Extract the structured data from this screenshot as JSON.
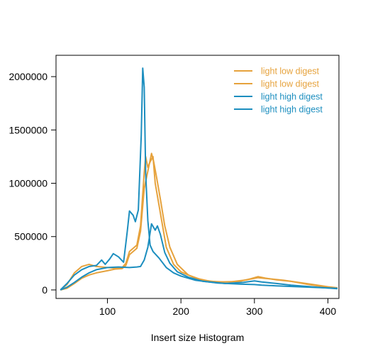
{
  "colors": {
    "low": "#E6A23C",
    "high": "#1C8EBF"
  },
  "chart_data": {
    "type": "line",
    "title": "",
    "xlabel": "Insert size Histogram",
    "ylabel": "",
    "xlim": [
      30,
      415
    ],
    "ylim": [
      -80000,
      2200000
    ],
    "x_ticks": [
      100,
      200,
      300,
      400
    ],
    "y_ticks": [
      0,
      500000,
      1000000,
      1500000,
      2000000
    ],
    "x_tick_labels": [
      "100",
      "200",
      "300",
      "400"
    ],
    "y_tick_labels": [
      "0",
      "500000",
      "1000000",
      "1500000",
      "2000000"
    ],
    "grid": false,
    "legend_position": "top-right",
    "legend": [
      {
        "label": "light low digest",
        "color_key": "low"
      },
      {
        "label": "light low digest",
        "color_key": "low"
      },
      {
        "label": "light high digest",
        "color_key": "high"
      },
      {
        "label": "light high digest",
        "color_key": "high"
      }
    ],
    "series": [
      {
        "color_key": "low",
        "points": [
          [
            36,
            0
          ],
          [
            45,
            50000
          ],
          [
            55,
            160000
          ],
          [
            65,
            220000
          ],
          [
            75,
            240000
          ],
          [
            85,
            220000
          ],
          [
            100,
            210000
          ],
          [
            110,
            205000
          ],
          [
            120,
            210000
          ],
          [
            125,
            250000
          ],
          [
            130,
            360000
          ],
          [
            140,
            420000
          ],
          [
            145,
            600000
          ],
          [
            150,
            1100000
          ],
          [
            152,
            1250000
          ],
          [
            155,
            1150000
          ],
          [
            158,
            1200000
          ],
          [
            162,
            1250000
          ],
          [
            165,
            1000000
          ],
          [
            170,
            800000
          ],
          [
            175,
            600000
          ],
          [
            180,
            400000
          ],
          [
            190,
            240000
          ],
          [
            200,
            170000
          ],
          [
            220,
            110000
          ],
          [
            240,
            80000
          ],
          [
            260,
            75000
          ],
          [
            280,
            80000
          ],
          [
            295,
            105000
          ],
          [
            305,
            125000
          ],
          [
            315,
            110000
          ],
          [
            330,
            95000
          ],
          [
            350,
            80000
          ],
          [
            370,
            55000
          ],
          [
            390,
            35000
          ],
          [
            413,
            15000
          ]
        ]
      },
      {
        "color_key": "low",
        "points": [
          [
            36,
            0
          ],
          [
            45,
            15000
          ],
          [
            55,
            60000
          ],
          [
            65,
            110000
          ],
          [
            75,
            140000
          ],
          [
            85,
            160000
          ],
          [
            100,
            180000
          ],
          [
            110,
            195000
          ],
          [
            120,
            200000
          ],
          [
            125,
            230000
          ],
          [
            130,
            330000
          ],
          [
            140,
            390000
          ],
          [
            145,
            550000
          ],
          [
            150,
            950000
          ],
          [
            153,
            1050000
          ],
          [
            157,
            1180000
          ],
          [
            160,
            1280000
          ],
          [
            163,
            1200000
          ],
          [
            167,
            1050000
          ],
          [
            172,
            850000
          ],
          [
            178,
            600000
          ],
          [
            185,
            400000
          ],
          [
            195,
            240000
          ],
          [
            210,
            140000
          ],
          [
            230,
            90000
          ],
          [
            250,
            75000
          ],
          [
            270,
            78000
          ],
          [
            290,
            95000
          ],
          [
            305,
            115000
          ],
          [
            320,
            105000
          ],
          [
            340,
            90000
          ],
          [
            360,
            70000
          ],
          [
            380,
            50000
          ],
          [
            400,
            30000
          ],
          [
            413,
            20000
          ]
        ]
      },
      {
        "color_key": "high",
        "points": [
          [
            36,
            0
          ],
          [
            45,
            60000
          ],
          [
            55,
            140000
          ],
          [
            65,
            190000
          ],
          [
            75,
            220000
          ],
          [
            85,
            230000
          ],
          [
            92,
            280000
          ],
          [
            97,
            240000
          ],
          [
            103,
            290000
          ],
          [
            108,
            340000
          ],
          [
            115,
            310000
          ],
          [
            122,
            260000
          ],
          [
            127,
            550000
          ],
          [
            130,
            740000
          ],
          [
            135,
            700000
          ],
          [
            138,
            640000
          ],
          [
            142,
            750000
          ],
          [
            146,
            1450000
          ],
          [
            148,
            2080000
          ],
          [
            150,
            1900000
          ],
          [
            152,
            1100000
          ],
          [
            155,
            650000
          ],
          [
            158,
            420000
          ],
          [
            162,
            360000
          ],
          [
            170,
            300000
          ],
          [
            180,
            210000
          ],
          [
            190,
            160000
          ],
          [
            200,
            130000
          ],
          [
            220,
            90000
          ],
          [
            250,
            65000
          ],
          [
            280,
            55000
          ],
          [
            300,
            50000
          ],
          [
            310,
            45000
          ],
          [
            330,
            38000
          ],
          [
            360,
            30000
          ],
          [
            390,
            22000
          ],
          [
            413,
            15000
          ]
        ]
      },
      {
        "color_key": "high",
        "points": [
          [
            36,
            0
          ],
          [
            45,
            25000
          ],
          [
            55,
            70000
          ],
          [
            65,
            120000
          ],
          [
            75,
            160000
          ],
          [
            85,
            190000
          ],
          [
            100,
            210000
          ],
          [
            115,
            215000
          ],
          [
            130,
            210000
          ],
          [
            140,
            215000
          ],
          [
            145,
            220000
          ],
          [
            150,
            280000
          ],
          [
            155,
            400000
          ],
          [
            160,
            620000
          ],
          [
            165,
            560000
          ],
          [
            168,
            600000
          ],
          [
            172,
            520000
          ],
          [
            178,
            350000
          ],
          [
            185,
            250000
          ],
          [
            195,
            170000
          ],
          [
            210,
            120000
          ],
          [
            230,
            80000
          ],
          [
            260,
            60000
          ],
          [
            285,
            70000
          ],
          [
            300,
            85000
          ],
          [
            310,
            75000
          ],
          [
            330,
            60000
          ],
          [
            350,
            45000
          ],
          [
            380,
            28000
          ],
          [
            413,
            12000
          ]
        ]
      }
    ]
  }
}
